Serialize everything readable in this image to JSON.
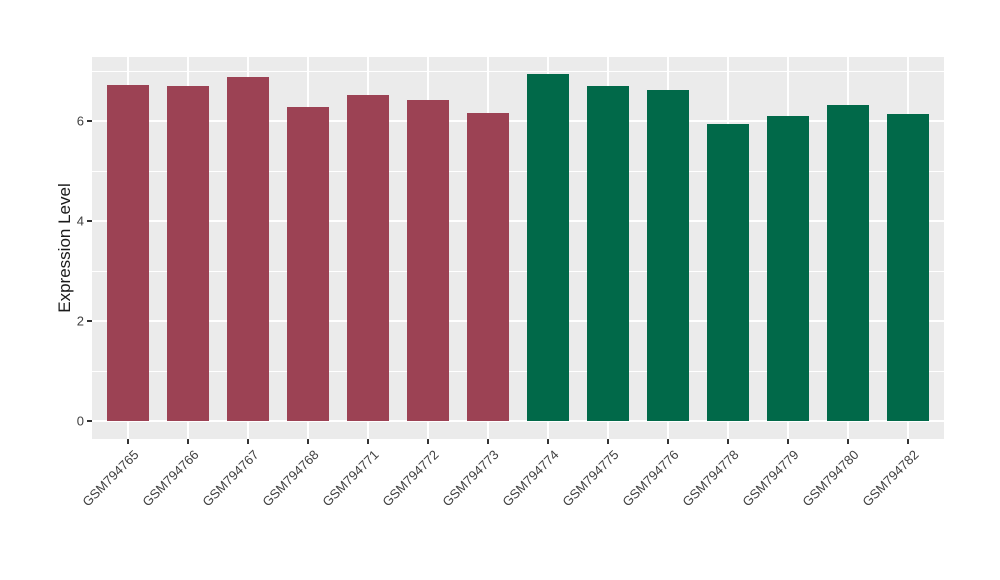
{
  "figure": {
    "background": "#FFFFFF",
    "panel_background": "#EBEBEB",
    "gridline_color": "#FFFFFF",
    "axis_text_color": "#404040",
    "axis_title_color": "#1A1A1A",
    "tick_mark_color": "#333333"
  },
  "chart_data": {
    "type": "bar",
    "title": "",
    "xlabel": "",
    "ylabel": "Expression Level",
    "categories": [
      "GSM794765",
      "GSM794766",
      "GSM794767",
      "GSM794768",
      "GSM794771",
      "GSM794772",
      "GSM794773",
      "GSM794774",
      "GSM794775",
      "GSM794776",
      "GSM794778",
      "GSM794779",
      "GSM794780",
      "GSM794782"
    ],
    "values": [
      6.73,
      6.71,
      6.88,
      6.28,
      6.52,
      6.42,
      6.17,
      6.94,
      6.7,
      6.62,
      5.95,
      6.11,
      6.33,
      6.15
    ],
    "groups": [
      0,
      0,
      0,
      0,
      0,
      0,
      0,
      1,
      1,
      1,
      1,
      1,
      1,
      1
    ],
    "group_colors": [
      "#9C4254",
      "#016949"
    ],
    "ylim": [
      0,
      7.3
    ],
    "yticks": [
      0,
      2,
      4,
      6
    ],
    "yminor": [
      1,
      3,
      5,
      7
    ],
    "grid": true,
    "legend": "none",
    "x_tick_rotation": 45
  }
}
